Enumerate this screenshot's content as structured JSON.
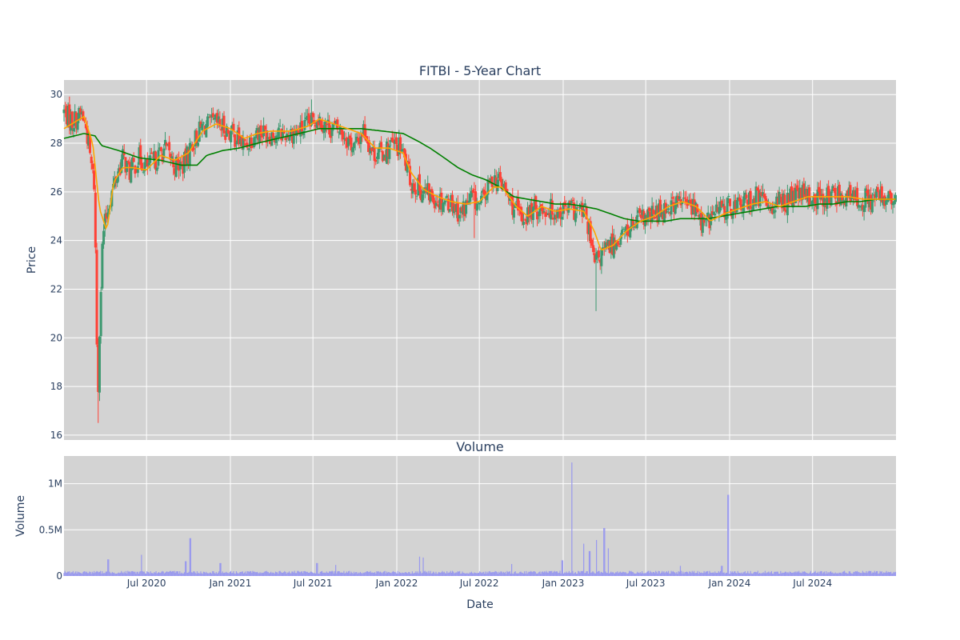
{
  "chart_data": {
    "type": "candlestick",
    "title": "FITBI - 5-Year Chart",
    "colors": {
      "background": "#d3d3d3",
      "grid": "#ffffff",
      "increasing": "#3d9970",
      "decreasing": "#ff4136",
      "ma_short": "#ffa500",
      "ma_long": "#008000",
      "volume": "#9999ee",
      "text": "#2a3f5f"
    },
    "price_panel": {
      "ylabel": "Price",
      "ylim": [
        15.8,
        30.6
      ],
      "yticks": [
        16,
        18,
        20,
        22,
        24,
        26,
        28,
        30
      ],
      "ytick_labels": [
        "16",
        "18",
        "20",
        "22",
        "24",
        "26",
        "28",
        "30"
      ],
      "grid": true,
      "close_anchors": [
        [
          "2020-01-02",
          29.3
        ],
        [
          "2020-01-20",
          28.9
        ],
        [
          "2020-02-10",
          29.2
        ],
        [
          "2020-02-20",
          28.6
        ],
        [
          "2020-03-01",
          27.2
        ],
        [
          "2020-03-09",
          26.2
        ],
        [
          "2020-03-16",
          17.2
        ],
        [
          "2020-03-20",
          20.5
        ],
        [
          "2020-03-27",
          24.2
        ],
        [
          "2020-04-10",
          25.6
        ],
        [
          "2020-04-25",
          26.6
        ],
        [
          "2020-05-10",
          27.4
        ],
        [
          "2020-05-25",
          26.8
        ],
        [
          "2020-06-15",
          27.4
        ],
        [
          "2020-07-01",
          27.0
        ],
        [
          "2020-07-20",
          27.3
        ],
        [
          "2020-08-10",
          27.8
        ],
        [
          "2020-09-01",
          27.1
        ],
        [
          "2020-09-20",
          27.1
        ],
        [
          "2020-10-10",
          28.0
        ],
        [
          "2020-11-01",
          28.7
        ],
        [
          "2020-12-01",
          28.8
        ],
        [
          "2020-12-20",
          28.6
        ],
        [
          "2021-01-10",
          28.3
        ],
        [
          "2021-02-01",
          27.9
        ],
        [
          "2021-03-01",
          28.5
        ],
        [
          "2021-04-01",
          28.4
        ],
        [
          "2021-05-01",
          28.4
        ],
        [
          "2021-06-01",
          28.5
        ],
        [
          "2021-06-25",
          28.8
        ],
        [
          "2021-07-10",
          29.1
        ],
        [
          "2021-08-01",
          28.7
        ],
        [
          "2021-09-01",
          28.5
        ],
        [
          "2021-10-01",
          27.8
        ],
        [
          "2021-10-20",
          28.6
        ],
        [
          "2021-11-10",
          27.6
        ],
        [
          "2021-12-01",
          27.6
        ],
        [
          "2021-12-20",
          27.9
        ],
        [
          "2022-01-10",
          27.8
        ],
        [
          "2022-02-01",
          26.4
        ],
        [
          "2022-03-01",
          26.0
        ],
        [
          "2022-04-01",
          25.7
        ],
        [
          "2022-05-01",
          25.6
        ],
        [
          "2022-05-20",
          25.1
        ],
        [
          "2022-06-15",
          25.8
        ],
        [
          "2022-07-01",
          25.4
        ],
        [
          "2022-08-01",
          26.6
        ],
        [
          "2022-08-20",
          26.3
        ],
        [
          "2022-09-10",
          25.5
        ],
        [
          "2022-10-01",
          24.9
        ],
        [
          "2022-11-01",
          25.3
        ],
        [
          "2022-12-01",
          25.3
        ],
        [
          "2022-12-20",
          25.2
        ],
        [
          "2023-01-10",
          25.3
        ],
        [
          "2023-02-01",
          25.2
        ],
        [
          "2023-02-20",
          25.1
        ],
        [
          "2023-03-10",
          23.0
        ],
        [
          "2023-03-25",
          23.4
        ],
        [
          "2023-04-15",
          23.8
        ],
        [
          "2023-05-15",
          24.3
        ],
        [
          "2023-06-15",
          24.8
        ],
        [
          "2023-07-15",
          25.0
        ],
        [
          "2023-08-15",
          25.4
        ],
        [
          "2023-09-15",
          25.6
        ],
        [
          "2023-10-15",
          25.4
        ],
        [
          "2023-11-05",
          24.6
        ],
        [
          "2023-12-01",
          25.2
        ],
        [
          "2024-01-01",
          25.4
        ],
        [
          "2024-02-01",
          25.5
        ],
        [
          "2024-03-01",
          25.8
        ],
        [
          "2024-04-01",
          25.5
        ],
        [
          "2024-05-01",
          25.6
        ],
        [
          "2024-06-01",
          25.9
        ],
        [
          "2024-07-01",
          25.7
        ],
        [
          "2024-08-01",
          25.8
        ],
        [
          "2024-09-01",
          25.9
        ],
        [
          "2024-10-01",
          25.7
        ],
        [
          "2024-11-01",
          25.7
        ],
        [
          "2024-12-01",
          25.8
        ],
        [
          "2024-12-31",
          25.5
        ]
      ],
      "extremes": [
        [
          "2020-03-16",
          16.5
        ],
        [
          "2020-03-18",
          16.5
        ],
        [
          "2023-03-13",
          21.1
        ],
        [
          "2021-06-28",
          29.8
        ],
        [
          "2022-06-20",
          24.1
        ]
      ],
      "ma_short_anchors": [
        [
          "2020-01-02",
          28.6
        ],
        [
          "2020-02-15",
          29.1
        ],
        [
          "2020-03-05",
          28.0
        ],
        [
          "2020-03-20",
          25.3
        ],
        [
          "2020-04-05",
          24.4
        ],
        [
          "2020-04-20",
          26.4
        ],
        [
          "2020-05-10",
          27.0
        ],
        [
          "2020-06-01",
          27.0
        ],
        [
          "2020-07-01",
          26.9
        ],
        [
          "2020-08-01",
          27.5
        ],
        [
          "2020-09-01",
          27.3
        ],
        [
          "2020-10-01",
          27.6
        ],
        [
          "2020-11-01",
          28.5
        ],
        [
          "2020-12-01",
          28.8
        ],
        [
          "2021-01-01",
          28.6
        ],
        [
          "2021-02-01",
          28.2
        ],
        [
          "2021-03-01",
          28.4
        ],
        [
          "2021-04-01",
          28.5
        ],
        [
          "2021-05-15",
          28.5
        ],
        [
          "2021-06-20",
          28.7
        ],
        [
          "2021-07-15",
          29.0
        ],
        [
          "2021-08-15",
          28.8
        ],
        [
          "2021-09-15",
          28.6
        ],
        [
          "2021-10-15",
          28.4
        ],
        [
          "2021-11-15",
          27.8
        ],
        [
          "2021-12-15",
          27.8
        ],
        [
          "2022-01-15",
          27.6
        ],
        [
          "2022-02-01",
          26.8
        ],
        [
          "2022-03-01",
          26.1
        ],
        [
          "2022-04-01",
          25.8
        ],
        [
          "2022-05-01",
          25.6
        ],
        [
          "2022-06-01",
          25.5
        ],
        [
          "2022-07-01",
          25.6
        ],
        [
          "2022-08-01",
          26.2
        ],
        [
          "2022-08-20",
          26.2
        ],
        [
          "2022-09-20",
          25.4
        ],
        [
          "2022-10-15",
          25.0
        ],
        [
          "2022-11-15",
          25.4
        ],
        [
          "2022-12-15",
          25.2
        ],
        [
          "2023-01-15",
          25.3
        ],
        [
          "2023-02-15",
          25.2
        ],
        [
          "2023-03-10",
          24.4
        ],
        [
          "2023-03-25",
          23.6
        ],
        [
          "2023-04-20",
          23.8
        ],
        [
          "2023-05-20",
          24.4
        ],
        [
          "2023-06-20",
          24.8
        ],
        [
          "2023-07-20",
          25.0
        ],
        [
          "2023-08-20",
          25.4
        ],
        [
          "2023-09-20",
          25.6
        ],
        [
          "2023-10-20",
          25.4
        ],
        [
          "2023-11-20",
          24.8
        ],
        [
          "2023-12-20",
          25.1
        ],
        [
          "2024-01-20",
          25.3
        ],
        [
          "2024-02-20",
          25.5
        ],
        [
          "2024-03-20",
          25.6
        ],
        [
          "2024-04-20",
          25.4
        ],
        [
          "2024-05-20",
          25.6
        ],
        [
          "2024-06-20",
          25.8
        ],
        [
          "2024-07-20",
          25.8
        ],
        [
          "2024-08-20",
          25.8
        ],
        [
          "2024-09-20",
          25.8
        ],
        [
          "2024-10-20",
          25.7
        ],
        [
          "2024-11-20",
          25.7
        ],
        [
          "2024-12-31",
          25.7
        ]
      ],
      "ma_long_anchors": [
        [
          "2020-01-02",
          28.2
        ],
        [
          "2020-02-15",
          28.4
        ],
        [
          "2020-03-10",
          28.3
        ],
        [
          "2020-03-25",
          27.9
        ],
        [
          "2020-05-01",
          27.7
        ],
        [
          "2020-06-15",
          27.4
        ],
        [
          "2020-08-01",
          27.3
        ],
        [
          "2020-09-15",
          27.1
        ],
        [
          "2020-10-20",
          27.1
        ],
        [
          "2020-11-10",
          27.5
        ],
        [
          "2020-12-15",
          27.7
        ],
        [
          "2021-01-20",
          27.8
        ],
        [
          "2021-03-01",
          28.0
        ],
        [
          "2021-04-15",
          28.2
        ],
        [
          "2021-06-01",
          28.4
        ],
        [
          "2021-07-15",
          28.6
        ],
        [
          "2021-09-01",
          28.6
        ],
        [
          "2021-10-15",
          28.6
        ],
        [
          "2021-12-01",
          28.5
        ],
        [
          "2022-01-15",
          28.4
        ],
        [
          "2022-02-15",
          28.1
        ],
        [
          "2022-03-15",
          27.8
        ],
        [
          "2022-04-15",
          27.4
        ],
        [
          "2022-05-15",
          27.0
        ],
        [
          "2022-06-15",
          26.7
        ],
        [
          "2022-07-15",
          26.5
        ],
        [
          "2022-08-15",
          26.2
        ],
        [
          "2022-09-15",
          25.8
        ],
        [
          "2022-10-15",
          25.7
        ],
        [
          "2022-11-15",
          25.6
        ],
        [
          "2022-12-15",
          25.5
        ],
        [
          "2023-01-15",
          25.5
        ],
        [
          "2023-02-15",
          25.4
        ],
        [
          "2023-03-15",
          25.3
        ],
        [
          "2023-04-15",
          25.1
        ],
        [
          "2023-05-15",
          24.9
        ],
        [
          "2023-06-15",
          24.8
        ],
        [
          "2023-07-15",
          24.8
        ],
        [
          "2023-08-15",
          24.8
        ],
        [
          "2023-09-15",
          24.9
        ],
        [
          "2023-10-15",
          24.9
        ],
        [
          "2023-11-15",
          24.9
        ],
        [
          "2023-12-15",
          25.0
        ],
        [
          "2024-01-15",
          25.1
        ],
        [
          "2024-02-15",
          25.2
        ],
        [
          "2024-03-15",
          25.3
        ],
        [
          "2024-04-15",
          25.4
        ],
        [
          "2024-05-15",
          25.4
        ],
        [
          "2024-06-15",
          25.4
        ],
        [
          "2024-07-15",
          25.5
        ],
        [
          "2024-08-15",
          25.5
        ],
        [
          "2024-09-15",
          25.6
        ],
        [
          "2024-10-15",
          25.6
        ],
        [
          "2024-11-15",
          25.7
        ],
        [
          "2024-12-31",
          25.7
        ]
      ]
    },
    "volume_panel": {
      "title": "Volume",
      "ylabel": "Volume",
      "ylim": [
        0,
        1300000
      ],
      "yticks": [
        0,
        500000,
        1000000
      ],
      "ytick_labels": [
        "0",
        "0.5M",
        "1M"
      ],
      "typical_volume": 40000,
      "spikes": [
        [
          "2020-04-08",
          180000
        ],
        [
          "2020-06-20",
          230000
        ],
        [
          "2020-09-25",
          160000
        ],
        [
          "2020-10-05",
          410000
        ],
        [
          "2020-12-10",
          140000
        ],
        [
          "2021-07-10",
          140000
        ],
        [
          "2021-08-20",
          120000
        ],
        [
          "2022-02-20",
          210000
        ],
        [
          "2022-02-28",
          200000
        ],
        [
          "2022-09-10",
          130000
        ],
        [
          "2022-12-30",
          170000
        ],
        [
          "2023-01-20",
          1230000
        ],
        [
          "2023-02-15",
          350000
        ],
        [
          "2023-02-28",
          270000
        ],
        [
          "2023-03-15",
          390000
        ],
        [
          "2023-04-01",
          520000
        ],
        [
          "2023-04-10",
          300000
        ],
        [
          "2023-09-15",
          110000
        ],
        [
          "2023-12-15",
          110000
        ],
        [
          "2023-12-29",
          880000
        ]
      ]
    },
    "x_axis": {
      "xlabel": "Date",
      "start": "2020-01-02",
      "end": "2024-12-31",
      "ticks": [
        "2020-07-01",
        "2021-01-01",
        "2021-07-01",
        "2022-01-01",
        "2022-07-01",
        "2023-01-01",
        "2023-07-01",
        "2024-01-01",
        "2024-07-01"
      ],
      "tick_labels": [
        "Jul 2020",
        "Jan 2021",
        "Jul 2021",
        "Jan 2022",
        "Jul 2022",
        "Jan 2023",
        "Jul 2023",
        "Jan 2024",
        "Jul 2024"
      ]
    }
  }
}
